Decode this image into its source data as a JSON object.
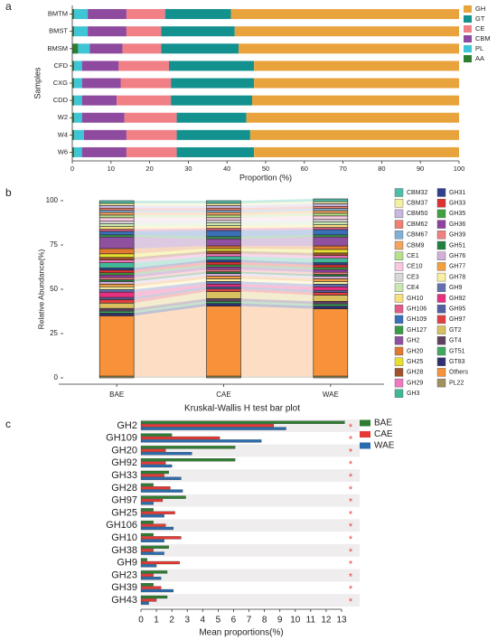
{
  "chart_data": [
    {
      "type": "bar",
      "label": "a",
      "orientation": "horizontal",
      "stacked": true,
      "xlabel": "Proportion (%)",
      "ylabel": "Samples",
      "categories": [
        "BMTM",
        "BMST",
        "BMSM",
        "CFD",
        "CXG",
        "CDD",
        "W2",
        "W4",
        "W6"
      ],
      "series": [
        {
          "name": "AA",
          "color": "#2e7d32",
          "values": [
            0.5,
            0.5,
            1.5,
            0.5,
            0.5,
            0.5,
            0.5,
            0.5,
            0.5
          ]
        },
        {
          "name": "PL",
          "color": "#3ec6d6",
          "values": [
            3.5,
            3.5,
            3,
            2,
            2,
            2,
            2,
            2.5,
            2
          ]
        },
        {
          "name": "CBM",
          "color": "#8e4a9e",
          "values": [
            10,
            10,
            8.5,
            9.5,
            10,
            9,
            11,
            11,
            11.5
          ]
        },
        {
          "name": "CE",
          "color": "#f07f86",
          "values": [
            10,
            9,
            10,
            13,
            13,
            14,
            13.5,
            13,
            13
          ]
        },
        {
          "name": "GT",
          "color": "#13918f",
          "values": [
            17,
            19,
            20,
            22,
            21.5,
            21,
            18,
            19,
            20
          ]
        },
        {
          "name": "GH",
          "color": "#e8a33c",
          "values": [
            59,
            58,
            57,
            53,
            53,
            53.5,
            55,
            54,
            53
          ]
        }
      ],
      "xlim": [
        0,
        100
      ],
      "xticks": [
        0,
        10,
        20,
        30,
        40,
        50,
        60,
        70,
        80,
        90,
        100
      ]
    },
    {
      "type": "bar",
      "label": "b",
      "orientation": "vertical",
      "stacked": true,
      "flows": true,
      "ylabel": "Relative Abundance(%)",
      "categories": [
        "BAE",
        "CAE",
        "WAE"
      ],
      "series": [
        {
          "name": "CBM32",
          "color": "#4dbfa8",
          "values": [
            1.5,
            1.5,
            1.5
          ]
        },
        {
          "name": "CBM37",
          "color": "#f5f0a0",
          "values": [
            1.2,
            1.2,
            1.2
          ]
        },
        {
          "name": "CBM50",
          "color": "#c8b8e0",
          "values": [
            1.5,
            1.5,
            1.5
          ]
        },
        {
          "name": "CBM62",
          "color": "#f08070",
          "values": [
            1.2,
            1.2,
            1.2
          ]
        },
        {
          "name": "CBM67",
          "color": "#80b0d8",
          "values": [
            1.2,
            1.2,
            1.2
          ]
        },
        {
          "name": "CBM9",
          "color": "#f4a460",
          "values": [
            1.5,
            1.5,
            1.5
          ]
        },
        {
          "name": "CE1",
          "color": "#b8e08a",
          "values": [
            1.5,
            1.5,
            1.5
          ]
        },
        {
          "name": "CE10",
          "color": "#f9c8e0",
          "values": [
            2,
            1.5,
            2
          ]
        },
        {
          "name": "CE3",
          "color": "#d8d8d8",
          "values": [
            1.5,
            1.5,
            1.5
          ]
        },
        {
          "name": "CE4",
          "color": "#c8e8b0",
          "values": [
            1.5,
            1.5,
            1.5
          ]
        },
        {
          "name": "GH10",
          "color": "#f8e080",
          "values": [
            1.5,
            1.5,
            1.5
          ]
        },
        {
          "name": "GH106",
          "color": "#e05a8a",
          "values": [
            1.2,
            1.2,
            1.2
          ]
        },
        {
          "name": "GH109",
          "color": "#3a70b8",
          "values": [
            2,
            3.5,
            3
          ]
        },
        {
          "name": "GH127",
          "color": "#3a9a48",
          "values": [
            1.2,
            1.2,
            1.2
          ]
        },
        {
          "name": "GH2",
          "color": "#9050a0",
          "values": [
            6.5,
            4,
            5
          ]
        },
        {
          "name": "GH20",
          "color": "#e07a30",
          "values": [
            3,
            1.5,
            2
          ]
        },
        {
          "name": "GH25",
          "color": "#e8e030",
          "values": [
            2,
            1.5,
            2
          ]
        },
        {
          "name": "GH28",
          "color": "#a0522d",
          "values": [
            1.5,
            1.5,
            1.5
          ]
        },
        {
          "name": "GH29",
          "color": "#f078c0",
          "values": [
            1.5,
            1.5,
            1.5
          ]
        },
        {
          "name": "GH3",
          "color": "#40b898",
          "values": [
            3,
            2,
            2.5
          ]
        },
        {
          "name": "GH31",
          "color": "#304090",
          "values": [
            1.2,
            1.2,
            1.2
          ]
        },
        {
          "name": "GH33",
          "color": "#e03030",
          "values": [
            1.5,
            1.5,
            1.5
          ]
        },
        {
          "name": "GH35",
          "color": "#40a040",
          "values": [
            1.2,
            1.2,
            1.2
          ]
        },
        {
          "name": "GH36",
          "color": "#9040a0",
          "values": [
            1.5,
            1.5,
            1.5
          ]
        },
        {
          "name": "GH39",
          "color": "#f08080",
          "values": [
            1.2,
            1.2,
            1.2
          ]
        },
        {
          "name": "GH51",
          "color": "#208040",
          "values": [
            1,
            1,
            1
          ]
        },
        {
          "name": "GH76",
          "color": "#d0b0d8",
          "values": [
            1.5,
            1.5,
            1.5
          ]
        },
        {
          "name": "GH77",
          "color": "#f4a040",
          "values": [
            1.5,
            1.5,
            1.5
          ]
        },
        {
          "name": "GH78",
          "color": "#f8f0a0",
          "values": [
            1.5,
            1.5,
            1.5
          ]
        },
        {
          "name": "GH9",
          "color": "#6070b0",
          "values": [
            1.5,
            1.5,
            1.5
          ]
        },
        {
          "name": "GH92",
          "color": "#e83080",
          "values": [
            3,
            1.5,
            2
          ]
        },
        {
          "name": "GH95",
          "color": "#5060a0",
          "values": [
            1.2,
            1.2,
            1.2
          ]
        },
        {
          "name": "GH97",
          "color": "#e04040",
          "values": [
            2,
            1.5,
            1.5
          ]
        },
        {
          "name": "GT2",
          "color": "#d8c060",
          "values": [
            3,
            4,
            3.5
          ]
        },
        {
          "name": "GT4",
          "color": "#604060",
          "values": [
            1.5,
            1.5,
            1.5
          ]
        },
        {
          "name": "GT51",
          "color": "#40a860",
          "values": [
            1.2,
            1.2,
            1.2
          ]
        },
        {
          "name": "GT83",
          "color": "#303070",
          "values": [
            1.5,
            1.5,
            1.5
          ]
        },
        {
          "name": "Others",
          "color": "#f7923a",
          "values": [
            34,
            39.5,
            38
          ]
        },
        {
          "name": "PL22",
          "color": "#a09060",
          "values": [
            1,
            1,
            1
          ]
        }
      ],
      "ylim": [
        0,
        100
      ],
      "yticks": [
        0,
        25,
        50,
        75,
        100
      ]
    },
    {
      "type": "bar",
      "label": "c",
      "orientation": "horizontal",
      "stacked": false,
      "title": "Kruskal-Wallis H test bar plot",
      "xlabel": "Mean proportions(%)",
      "categories": [
        "GH2",
        "GH109",
        "GH20",
        "GH92",
        "GH33",
        "GH28",
        "GH97",
        "GH25",
        "GH106",
        "GH10",
        "GH38",
        "GH9",
        "GH23",
        "GH39",
        "GH43"
      ],
      "markers": [
        "*",
        "*",
        "*",
        "*",
        "*",
        "*",
        "*",
        "*",
        "*",
        "*",
        "*",
        "*",
        "*",
        "*",
        "*"
      ],
      "marker_color": "#e8474d",
      "series": [
        {
          "name": "BAE",
          "color": "#2f7d32",
          "values": [
            13.2,
            2.0,
            6.1,
            6.1,
            1.8,
            0.8,
            2.9,
            0.8,
            0.8,
            0.8,
            1.8,
            0.4,
            1.7,
            0.8,
            1.7
          ]
        },
        {
          "name": "CAE",
          "color": "#e53935",
          "values": [
            8.6,
            5.1,
            1.6,
            1.6,
            1.5,
            1.9,
            1.4,
            2.2,
            1.6,
            2.6,
            0.8,
            2.5,
            0.8,
            1.3,
            1.0
          ]
        },
        {
          "name": "WAE",
          "color": "#2b6cb0",
          "values": [
            9.4,
            7.8,
            3.3,
            2.0,
            2.6,
            2.7,
            0.8,
            1.5,
            2.1,
            1.5,
            1.5,
            1.0,
            1.3,
            2.1,
            0.5
          ]
        }
      ],
      "xlim": [
        0,
        13
      ],
      "xticks": [
        0,
        1,
        2,
        3,
        4,
        5,
        6,
        7,
        8,
        9,
        10,
        11,
        12,
        13
      ]
    }
  ]
}
